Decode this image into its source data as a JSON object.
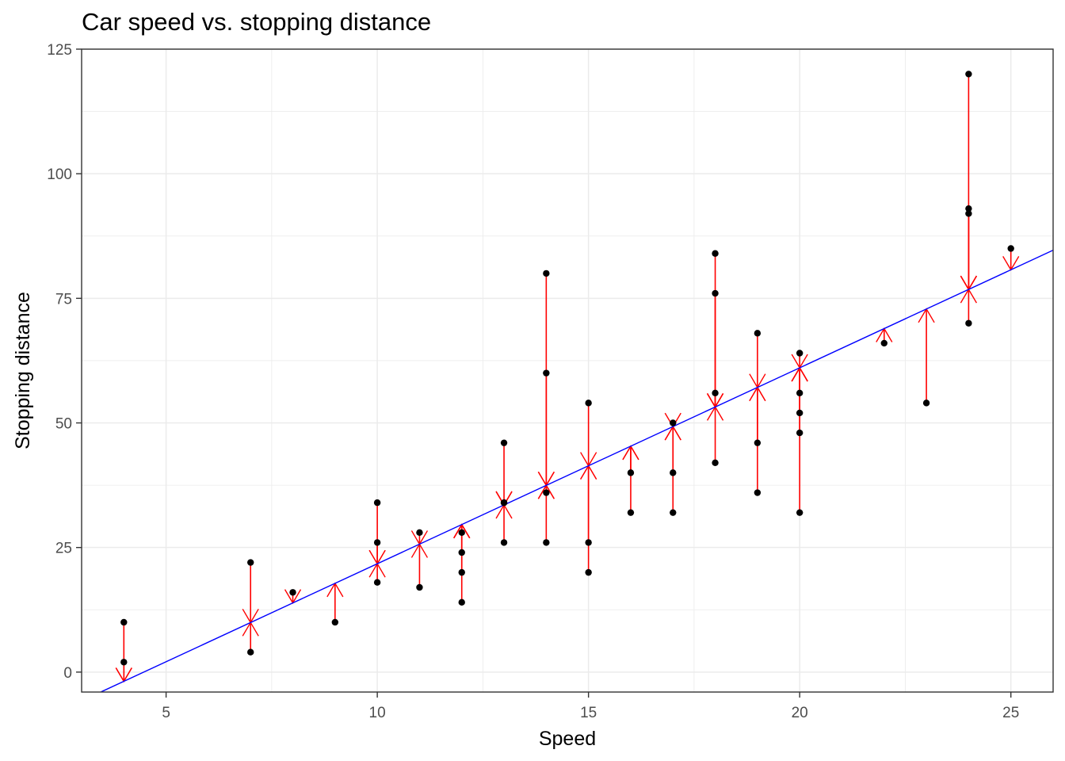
{
  "chart_data": {
    "type": "scatter",
    "title": "Car speed vs. stopping distance",
    "xlabel": "Speed",
    "ylabel": "Stopping distance",
    "xlim": [
      3,
      26
    ],
    "ylim": [
      -4,
      125
    ],
    "x_ticks": [
      5,
      10,
      15,
      20,
      25
    ],
    "y_ticks": [
      0,
      25,
      50,
      75,
      100,
      125
    ],
    "grid": true,
    "regression_line": {
      "intercept": -17.579,
      "slope": 3.932
    },
    "residual_arrows": true,
    "colors": {
      "points": "#000000",
      "regression": "#0000ff",
      "residuals": "#ff0000",
      "grid": "#ebebeb",
      "panel_border": "#333333"
    },
    "points": [
      [
        4,
        2
      ],
      [
        4,
        10
      ],
      [
        7,
        4
      ],
      [
        7,
        22
      ],
      [
        8,
        16
      ],
      [
        9,
        10
      ],
      [
        10,
        18
      ],
      [
        10,
        26
      ],
      [
        10,
        34
      ],
      [
        11,
        17
      ],
      [
        11,
        28
      ],
      [
        12,
        14
      ],
      [
        12,
        20
      ],
      [
        12,
        24
      ],
      [
        12,
        28
      ],
      [
        13,
        26
      ],
      [
        13,
        34
      ],
      [
        13,
        34
      ],
      [
        13,
        46
      ],
      [
        14,
        26
      ],
      [
        14,
        36
      ],
      [
        14,
        60
      ],
      [
        14,
        80
      ],
      [
        15,
        20
      ],
      [
        15,
        26
      ],
      [
        15,
        54
      ],
      [
        16,
        32
      ],
      [
        16,
        40
      ],
      [
        17,
        32
      ],
      [
        17,
        40
      ],
      [
        17,
        50
      ],
      [
        18,
        42
      ],
      [
        18,
        56
      ],
      [
        18,
        76
      ],
      [
        18,
        84
      ],
      [
        19,
        36
      ],
      [
        19,
        46
      ],
      [
        19,
        68
      ],
      [
        20,
        32
      ],
      [
        20,
        48
      ],
      [
        20,
        52
      ],
      [
        20,
        56
      ],
      [
        20,
        64
      ],
      [
        22,
        66
      ],
      [
        23,
        54
      ],
      [
        24,
        70
      ],
      [
        24,
        92
      ],
      [
        24,
        93
      ],
      [
        24,
        120
      ],
      [
        25,
        85
      ]
    ]
  }
}
